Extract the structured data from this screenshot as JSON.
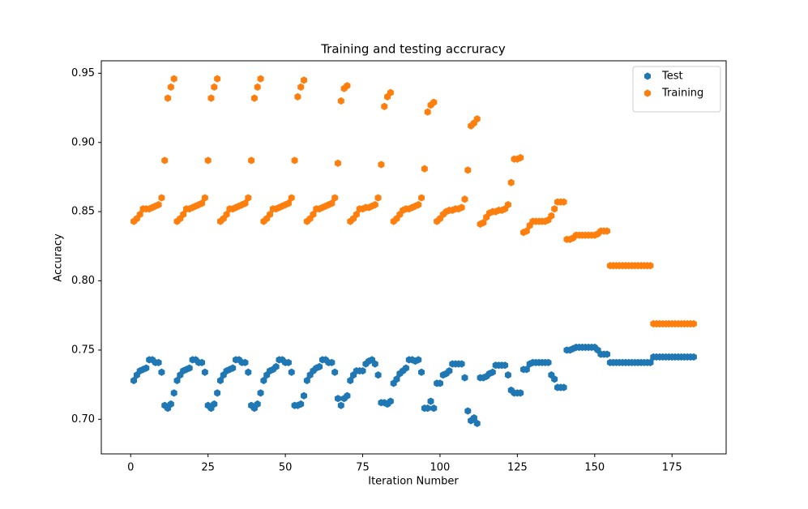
{
  "chart_data": {
    "type": "scatter",
    "title": "Training and testing accruracy",
    "x_label": "Iteration Number",
    "y_label": "Accuracy",
    "x": [
      1,
      2,
      3,
      4,
      5,
      6,
      7,
      8,
      9,
      10,
      11,
      12,
      13,
      14,
      15,
      16,
      17,
      18,
      19,
      20,
      21,
      22,
      23,
      24,
      25,
      26,
      27,
      28,
      29,
      30,
      31,
      32,
      33,
      34,
      35,
      36,
      37,
      38,
      39,
      40,
      41,
      42,
      43,
      44,
      45,
      46,
      47,
      48,
      49,
      50,
      51,
      52,
      53,
      54,
      55,
      56,
      57,
      58,
      59,
      60,
      61,
      62,
      63,
      64,
      65,
      66,
      67,
      68,
      69,
      70,
      71,
      72,
      73,
      74,
      75,
      76,
      77,
      78,
      79,
      80,
      81,
      82,
      83,
      84,
      85,
      86,
      87,
      88,
      89,
      90,
      91,
      92,
      93,
      94,
      95,
      96,
      97,
      98,
      99,
      100,
      101,
      102,
      103,
      104,
      105,
      106,
      107,
      108,
      109,
      110,
      111,
      112,
      113,
      114,
      115,
      116,
      117,
      118,
      119,
      120,
      121,
      122,
      123,
      124,
      125,
      126,
      127,
      128,
      129,
      130,
      131,
      132,
      133,
      134,
      135,
      136,
      137,
      138,
      139,
      140,
      141,
      142,
      143,
      144,
      145,
      146,
      147,
      148,
      149,
      150,
      151,
      152,
      153,
      154,
      155,
      156,
      157,
      158,
      159,
      160,
      161,
      162,
      163,
      164,
      165,
      166,
      167,
      168,
      169,
      170,
      171,
      172,
      173,
      174,
      175,
      176,
      177,
      178,
      179,
      180,
      181,
      182
    ],
    "series": [
      {
        "name": "Test",
        "color": "#1f77b4",
        "values": [
          0.728,
          0.732,
          0.735,
          0.736,
          0.737,
          0.743,
          0.743,
          0.741,
          0.741,
          0.734,
          0.71,
          0.708,
          0.711,
          0.719,
          0.728,
          0.732,
          0.735,
          0.736,
          0.737,
          0.743,
          0.743,
          0.741,
          0.741,
          0.734,
          0.71,
          0.708,
          0.711,
          0.719,
          0.728,
          0.732,
          0.735,
          0.736,
          0.737,
          0.743,
          0.743,
          0.741,
          0.741,
          0.734,
          0.71,
          0.708,
          0.711,
          0.719,
          0.728,
          0.732,
          0.735,
          0.736,
          0.738,
          0.743,
          0.743,
          0.741,
          0.741,
          0.734,
          0.71,
          0.71,
          0.711,
          0.717,
          0.728,
          0.732,
          0.735,
          0.737,
          0.738,
          0.743,
          0.743,
          0.741,
          0.741,
          0.734,
          0.715,
          0.71,
          0.715,
          0.717,
          0.728,
          0.732,
          0.735,
          0.735,
          0.735,
          0.74,
          0.742,
          0.743,
          0.74,
          0.732,
          0.712,
          0.712,
          0.711,
          0.713,
          0.726,
          0.729,
          0.733,
          0.735,
          0.737,
          0.743,
          0.743,
          0.742,
          0.743,
          0.734,
          0.708,
          0.708,
          0.713,
          0.708,
          0.726,
          0.726,
          0.732,
          0.733,
          0.735,
          0.74,
          0.74,
          0.74,
          0.74,
          0.73,
          0.706,
          0.699,
          0.701,
          0.697,
          0.73,
          0.73,
          0.731,
          0.733,
          0.734,
          0.739,
          0.739,
          0.739,
          0.739,
          0.732,
          0.721,
          0.719,
          0.719,
          0.719,
          0.736,
          0.736,
          0.74,
          0.741,
          0.741,
          0.741,
          0.741,
          0.741,
          0.741,
          0.732,
          0.729,
          0.723,
          0.723,
          0.723,
          0.75,
          0.75,
          0.751,
          0.752,
          0.752,
          0.752,
          0.752,
          0.752,
          0.752,
          0.752,
          0.75,
          0.747,
          0.747,
          0.747,
          0.741,
          0.741,
          0.741,
          0.741,
          0.741,
          0.741,
          0.741,
          0.741,
          0.741,
          0.741,
          0.741,
          0.741,
          0.741,
          0.741,
          0.745,
          0.745,
          0.745,
          0.745,
          0.745,
          0.745,
          0.745,
          0.745,
          0.745,
          0.745,
          0.745,
          0.745,
          0.745,
          0.745
        ]
      },
      {
        "name": "Training",
        "color": "#ff7f0e",
        "values": [
          0.843,
          0.845,
          0.848,
          0.852,
          0.852,
          0.852,
          0.853,
          0.854,
          0.855,
          0.86,
          0.887,
          0.932,
          0.94,
          0.946,
          0.843,
          0.845,
          0.848,
          0.852,
          0.852,
          0.853,
          0.854,
          0.855,
          0.856,
          0.86,
          0.887,
          0.932,
          0.94,
          0.946,
          0.843,
          0.845,
          0.848,
          0.852,
          0.852,
          0.853,
          0.854,
          0.855,
          0.856,
          0.86,
          0.887,
          0.932,
          0.94,
          0.946,
          0.843,
          0.845,
          0.848,
          0.852,
          0.852,
          0.853,
          0.854,
          0.855,
          0.856,
          0.86,
          0.887,
          0.933,
          0.94,
          0.945,
          0.843,
          0.845,
          0.848,
          0.852,
          0.852,
          0.853,
          0.854,
          0.855,
          0.856,
          0.86,
          0.885,
          0.93,
          0.939,
          0.941,
          0.843,
          0.845,
          0.848,
          0.852,
          0.852,
          0.853,
          0.853,
          0.854,
          0.855,
          0.86,
          0.884,
          0.926,
          0.933,
          0.936,
          0.843,
          0.845,
          0.848,
          0.851,
          0.852,
          0.852,
          0.853,
          0.854,
          0.855,
          0.86,
          0.881,
          0.922,
          0.927,
          0.929,
          0.843,
          0.845,
          0.848,
          0.85,
          0.851,
          0.851,
          0.852,
          0.852,
          0.853,
          0.859,
          0.88,
          0.912,
          0.914,
          0.917,
          0.841,
          0.842,
          0.846,
          0.849,
          0.85,
          0.85,
          0.851,
          0.851,
          0.852,
          0.855,
          0.871,
          0.888,
          0.888,
          0.889,
          0.835,
          0.836,
          0.84,
          0.843,
          0.843,
          0.843,
          0.843,
          0.843,
          0.844,
          0.847,
          0.852,
          0.857,
          0.857,
          0.857,
          0.83,
          0.83,
          0.831,
          0.833,
          0.833,
          0.833,
          0.833,
          0.833,
          0.833,
          0.833,
          0.834,
          0.836,
          0.836,
          0.836,
          0.811,
          0.811,
          0.811,
          0.811,
          0.811,
          0.811,
          0.811,
          0.811,
          0.811,
          0.811,
          0.811,
          0.811,
          0.811,
          0.811,
          0.769,
          0.769,
          0.769,
          0.769,
          0.769,
          0.769,
          0.769,
          0.769,
          0.769,
          0.769,
          0.769,
          0.769,
          0.769,
          0.769
        ]
      }
    ],
    "xlim": [
      -9.5,
      192.5
    ],
    "ylim": [
      0.675,
      0.959
    ],
    "xticks": [
      0,
      25,
      50,
      75,
      100,
      125,
      150,
      175
    ],
    "yticks": [
      {
        "value": 0.7,
        "label": "0.70"
      },
      0.75,
      {
        "value": 0.8,
        "label": "0.80"
      },
      0.85,
      {
        "value": 0.9,
        "label": "0.90"
      },
      0.95
    ],
    "legend": "upper right"
  }
}
